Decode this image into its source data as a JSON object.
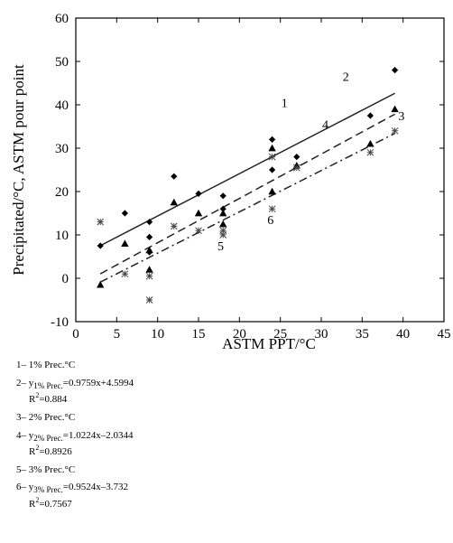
{
  "chart_data": {
    "type": "scatter",
    "xlabel": "ASTM PPT/°C",
    "ylabel": "Precipitated/°C, ASTM pour point",
    "xlim": [
      0,
      45
    ],
    "ylim": [
      -10,
      60
    ],
    "x_ticks": [
      "0",
      "5",
      "10",
      "15",
      "20",
      "25",
      "30",
      "35",
      "40",
      "45"
    ],
    "y_ticks": [
      "-10",
      "0",
      "10",
      "20",
      "30",
      "40",
      "50",
      "60"
    ],
    "grid": false,
    "marker_colors": {
      "points": "#000000",
      "lines": "#222222"
    },
    "series": [
      {
        "marker": "diamond",
        "points": [
          [
            3,
            7.5
          ],
          [
            6,
            15
          ],
          [
            9,
            13
          ],
          [
            9,
            9.5
          ],
          [
            9,
            6
          ],
          [
            12,
            23.5
          ],
          [
            15,
            19.5
          ],
          [
            18,
            19
          ],
          [
            18,
            16
          ],
          [
            24,
            32
          ],
          [
            24,
            25
          ],
          [
            27,
            28
          ],
          [
            36,
            37.5
          ],
          [
            39,
            48
          ]
        ]
      },
      {
        "marker": "triangle",
        "points": [
          [
            3,
            -1.5
          ],
          [
            6,
            8
          ],
          [
            9,
            6.5
          ],
          [
            9,
            2
          ],
          [
            12,
            17.5
          ],
          [
            15,
            15
          ],
          [
            18,
            15
          ],
          [
            18,
            12.5
          ],
          [
            24,
            30
          ],
          [
            24,
            20
          ],
          [
            27,
            26
          ],
          [
            36,
            31
          ],
          [
            39,
            39
          ]
        ]
      },
      {
        "marker": "star",
        "points": [
          [
            3,
            13
          ],
          [
            6,
            1
          ],
          [
            9,
            0.5
          ],
          [
            9,
            -5
          ],
          [
            12,
            12
          ],
          [
            15,
            11
          ],
          [
            18,
            11
          ],
          [
            18,
            10
          ],
          [
            24,
            28
          ],
          [
            24,
            16
          ],
          [
            27,
            25.5
          ],
          [
            36,
            29
          ],
          [
            39,
            34
          ]
        ]
      }
    ],
    "fit_lines": [
      {
        "style": "solid",
        "slope": 0.9759,
        "intercept": 4.5994,
        "x_range": [
          3,
          39
        ]
      },
      {
        "style": "dashed",
        "slope": 1.0224,
        "intercept": -2.0344,
        "x_range": [
          3,
          39
        ]
      },
      {
        "style": "dashdot",
        "slope": 0.9524,
        "intercept": -3.732,
        "x_range": [
          3,
          39
        ]
      }
    ],
    "annotations": [
      {
        "text": "1",
        "x": 25.5,
        "y": 39.5
      },
      {
        "text": "2",
        "x": 33,
        "y": 45.5
      },
      {
        "text": "3",
        "x": 39.8,
        "y": 36.5
      },
      {
        "text": "4",
        "x": 30.5,
        "y": 34.5
      },
      {
        "text": "5",
        "x": 17.7,
        "y": 6.5
      },
      {
        "text": "6",
        "x": 23.8,
        "y": 12.5
      }
    ]
  },
  "legend": [
    {
      "num": "1–",
      "text": "1% Prec.°C"
    },
    {
      "num": "2–",
      "y": "y",
      "sub": "1% Prec.",
      "eq": "=0.9759x+4.5994",
      "r2_label": "R",
      "r2_sup": "2",
      "r2_value": "=0.884"
    },
    {
      "num": "3–",
      "text": "2% Prec.°C"
    },
    {
      "num": "4–",
      "y": "y",
      "sub": "2% Prec.",
      "eq": "=1.0224x–2.0344",
      "r2_label": "R",
      "r2_sup": "2",
      "r2_value": "=0.8926"
    },
    {
      "num": "5–",
      "text": "3% Prec.°C"
    },
    {
      "num": "6–",
      "y": "y",
      "sub": "3% Prec.",
      "eq": "=0.9524x–3.732",
      "r2_label": "R",
      "r2_sup": "2",
      "r2_value": "=0.7567"
    }
  ]
}
